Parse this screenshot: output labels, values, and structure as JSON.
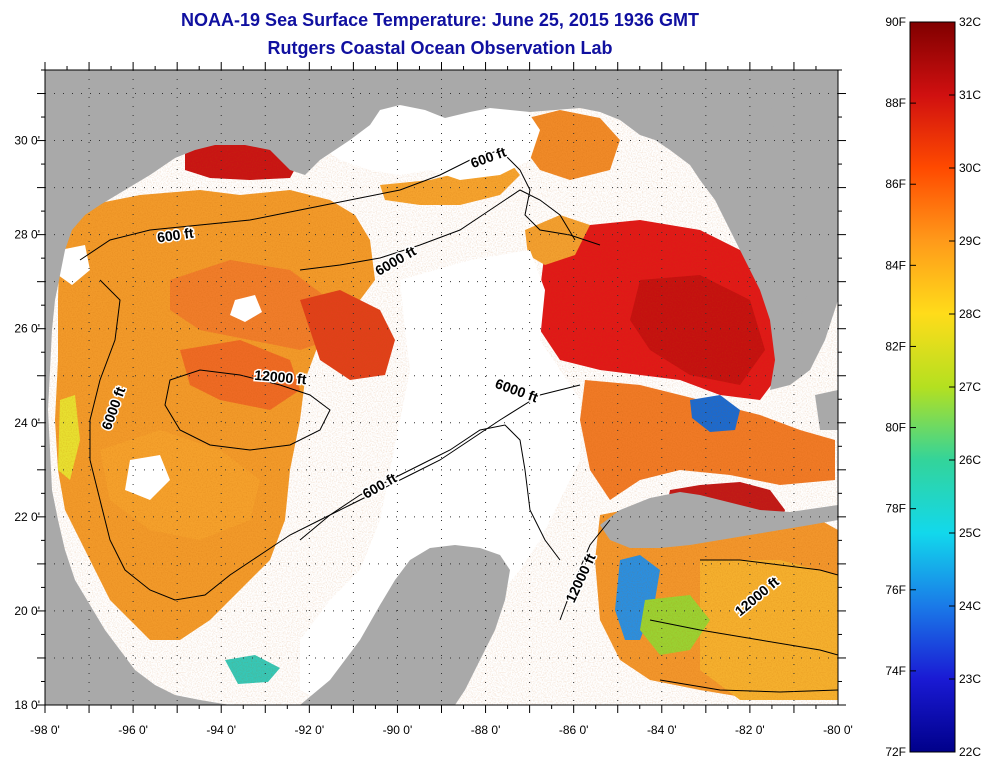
{
  "title": "NOAA-19 Sea Surface Temperature:  June 25, 2015 1936 GMT",
  "subtitle": "Rutgers Coastal Ocean Observation Lab",
  "map": {
    "lon_labels": [
      "-98 0'",
      "-96 0'",
      "-94 0'",
      "-92 0'",
      "-90 0'",
      "-88 0'",
      "-86 0'",
      "-84 0'",
      "-82 0'",
      "-80 0'"
    ],
    "lat_labels": [
      "18 0'",
      "20 0'",
      "22 0'",
      "24 0'",
      "26 0'",
      "28 0'",
      "30 0'"
    ],
    "land_color": "#a9a9a9",
    "cloud_color": "#ffffff",
    "contour_labels": [
      {
        "text": "600 ft",
        "rotate": -8
      },
      {
        "text": "600 ft",
        "rotate": -20
      },
      {
        "text": "600 ft",
        "rotate": -30
      },
      {
        "text": "6000 ft",
        "rotate": -30
      },
      {
        "text": "6000 ft",
        "rotate": 20
      },
      {
        "text": "6000 ft",
        "rotate": -70
      },
      {
        "text": "12000 ft",
        "rotate": 5
      },
      {
        "text": "12000 ft",
        "rotate": -65
      },
      {
        "text": "12000 ft",
        "rotate": -40
      }
    ]
  },
  "colorbar": {
    "fahrenheit_labels": [
      "90F",
      "88F",
      "86F",
      "84F",
      "82F",
      "80F",
      "78F",
      "76F",
      "74F",
      "72F"
    ],
    "celsius_labels": [
      "32C",
      "31C",
      "30C",
      "29C",
      "28C",
      "27C",
      "26C",
      "25C",
      "24C",
      "23C",
      "22C"
    ],
    "colors": [
      "#800000",
      "#d01010",
      "#ff4a00",
      "#ff9a1a",
      "#ffdc1a",
      "#b4e020",
      "#33d49a",
      "#12d8ec",
      "#1a7ae8",
      "#1a1ad4",
      "#00008a"
    ]
  }
}
